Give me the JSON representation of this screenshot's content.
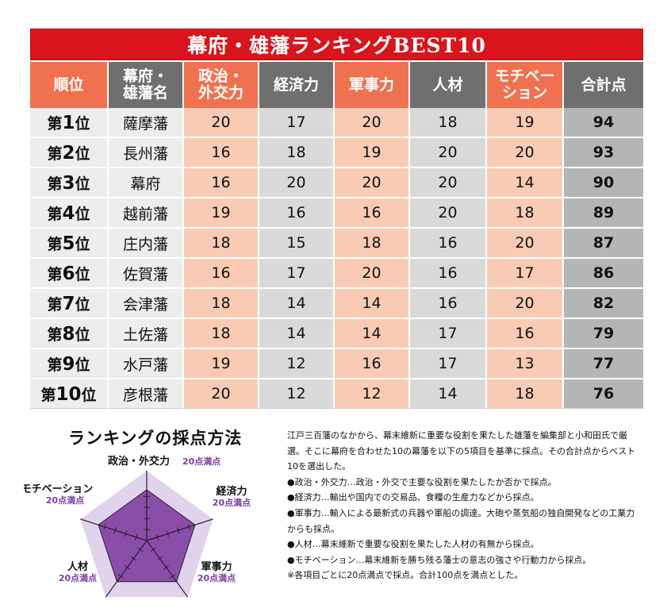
{
  "table": {
    "title": "幕府・雄藩ランキングBEST10",
    "headers": {
      "rank": "順位",
      "name_line1": "幕府・",
      "name_line2": "雄藩名",
      "politics_line1": "政治・",
      "politics_line2": "外交力",
      "economy": "経済力",
      "military": "軍事力",
      "talent": "人材",
      "motivation_line1": "モチベー",
      "motivation_line2": "ション",
      "total": "合計点"
    },
    "rows": [
      {
        "rank_prefix": "第",
        "rank_num": "1",
        "rank_suffix": "位",
        "name": "薩摩藩",
        "politics": "20",
        "economy": "17",
        "military": "20",
        "talent": "18",
        "motivation": "19",
        "total": "94"
      },
      {
        "rank_prefix": "第",
        "rank_num": "2",
        "rank_suffix": "位",
        "name": "長州藩",
        "politics": "16",
        "economy": "18",
        "military": "19",
        "talent": "20",
        "motivation": "20",
        "total": "93"
      },
      {
        "rank_prefix": "第",
        "rank_num": "3",
        "rank_suffix": "位",
        "name": "幕府",
        "politics": "16",
        "economy": "20",
        "military": "20",
        "talent": "20",
        "motivation": "14",
        "total": "90"
      },
      {
        "rank_prefix": "第",
        "rank_num": "4",
        "rank_suffix": "位",
        "name": "越前藩",
        "politics": "19",
        "economy": "16",
        "military": "16",
        "talent": "20",
        "motivation": "18",
        "total": "89"
      },
      {
        "rank_prefix": "第",
        "rank_num": "5",
        "rank_suffix": "位",
        "name": "庄内藩",
        "politics": "18",
        "economy": "15",
        "military": "18",
        "talent": "16",
        "motivation": "20",
        "total": "87"
      },
      {
        "rank_prefix": "第",
        "rank_num": "6",
        "rank_suffix": "位",
        "name": "佐賀藩",
        "politics": "16",
        "economy": "17",
        "military": "20",
        "talent": "16",
        "motivation": "17",
        "total": "86"
      },
      {
        "rank_prefix": "第",
        "rank_num": "7",
        "rank_suffix": "位",
        "name": "会津藩",
        "politics": "18",
        "economy": "14",
        "military": "14",
        "talent": "16",
        "motivation": "20",
        "total": "82"
      },
      {
        "rank_prefix": "第",
        "rank_num": "8",
        "rank_suffix": "位",
        "name": "土佐藩",
        "politics": "18",
        "economy": "14",
        "military": "14",
        "talent": "17",
        "motivation": "16",
        "total": "79"
      },
      {
        "rank_prefix": "第",
        "rank_num": "9",
        "rank_suffix": "位",
        "name": "水戸藩",
        "politics": "19",
        "economy": "12",
        "military": "16",
        "talent": "17",
        "motivation": "13",
        "total": "77"
      },
      {
        "rank_prefix": "第",
        "rank_num": "10",
        "rank_suffix": "位",
        "name": "彦根藩",
        "politics": "20",
        "economy": "12",
        "military": "12",
        "talent": "14",
        "motivation": "18",
        "total": "76"
      }
    ]
  },
  "method": {
    "title": "ランキングの採点方法",
    "axes": [
      {
        "label": "政治・外交力",
        "sub": "20点満点"
      },
      {
        "label": "経済力",
        "sub": "20点満点"
      },
      {
        "label": "軍事力",
        "sub": "20点満点"
      },
      {
        "label": "人材",
        "sub": "20点満点"
      },
      {
        "label": "モチベーション",
        "sub": "20点満点"
      }
    ],
    "colors": {
      "outer": "#e2d3ec",
      "inner": "#8a4ea8",
      "line": "#2a1a33"
    }
  },
  "description": [
    "江戸三百藩のなかから、幕末維新に重要な役割を果たした雄藩を編集部と小和田氏で厳選。そこに幕府を合わせた10の幕藩を以下の5項目を基準に採点。その合計点からベスト10を選出した。",
    "●政治・外交力…政治・外交で主要な役割を果たしたか否かで採点。",
    "●経済力…輸出や国内での交易品、食糧の生産力などから採点。",
    "●軍事力…輸入による最新式の兵器や軍船の調達。大砲や蒸気船の独自開発などの工業力からも採点。",
    "●人材…幕末維新で重要な役割を果たした人材の有無から採点。",
    "●モチベーション…幕末維新を勝ち残る藩士の意志の強さや行動力から採点。",
    "※各項目ごとに20点満点で採点。合計100点を満点とした。"
  ]
}
